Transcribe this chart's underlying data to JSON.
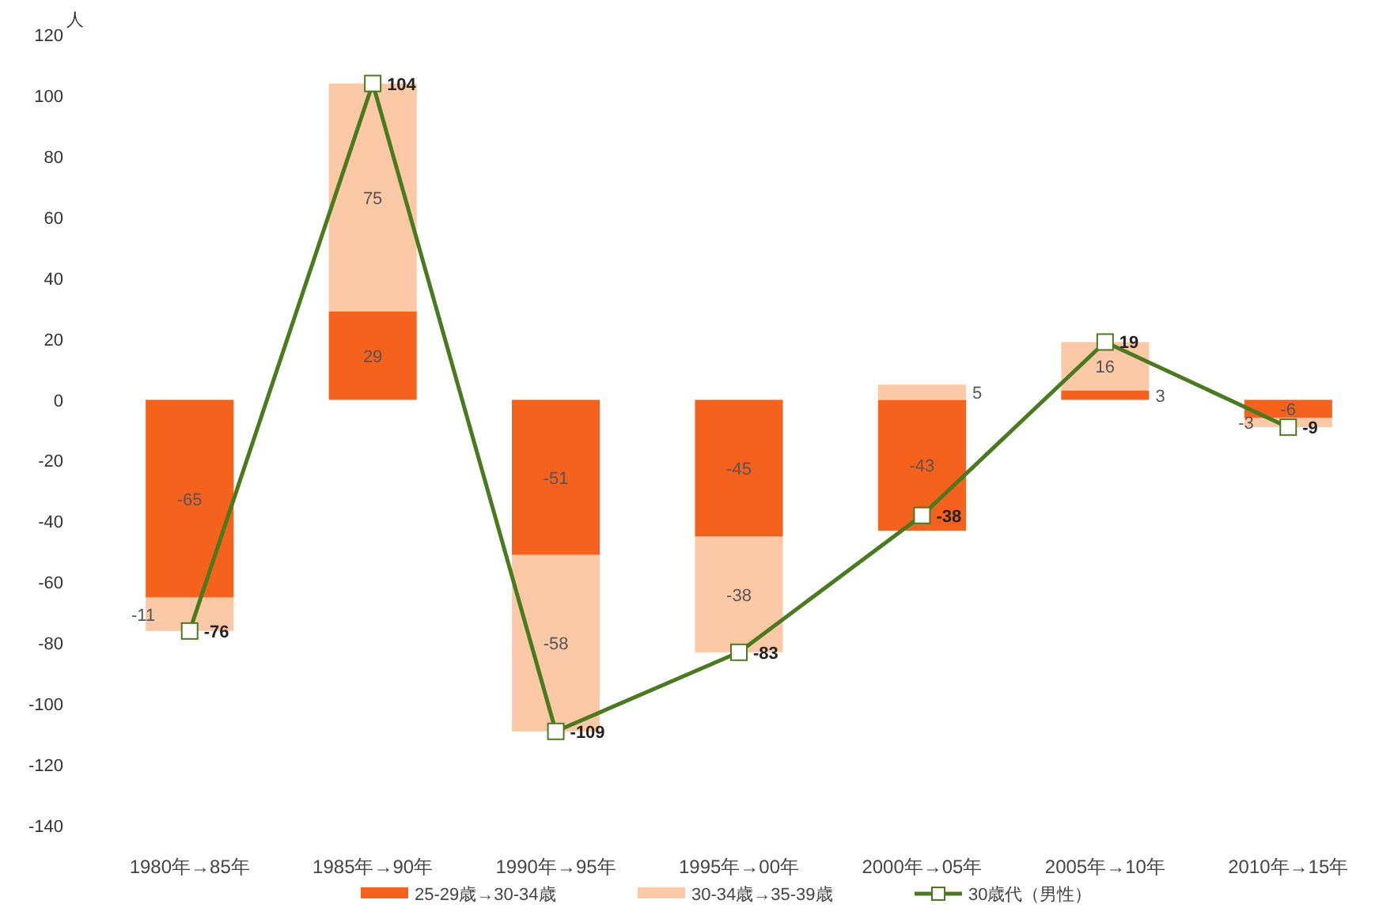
{
  "chart_data": {
    "type": "bar",
    "ylabel": "人",
    "categories": [
      "1980年→85年",
      "1985年→90年",
      "1990年→95年",
      "1995年→00年",
      "2000年→05年",
      "2005年→10年",
      "2010年→15年"
    ],
    "series": [
      {
        "name": "25-29歳→30-34歳",
        "color": "#f4621e",
        "values": [
          -65,
          29,
          -51,
          -45,
          -43,
          3,
          -6
        ]
      },
      {
        "name": "30-34歳→35-39歳",
        "color": "#fbc9a6",
        "values": [
          -11,
          75,
          -58,
          -38,
          5,
          16,
          -3
        ]
      },
      {
        "name": "30歳代（男性）",
        "type": "line",
        "color": "#4a7a1e",
        "marker": "square",
        "values": [
          -76,
          104,
          -109,
          -83,
          -38,
          19,
          -9
        ]
      }
    ],
    "stacked": true,
    "ylim": [
      -140,
      120
    ],
    "yticks": [
      -140,
      -120,
      -100,
      -80,
      -60,
      -40,
      -20,
      0,
      20,
      40,
      60,
      80,
      100,
      120
    ],
    "legend": "bottom",
    "data_labels": true
  }
}
